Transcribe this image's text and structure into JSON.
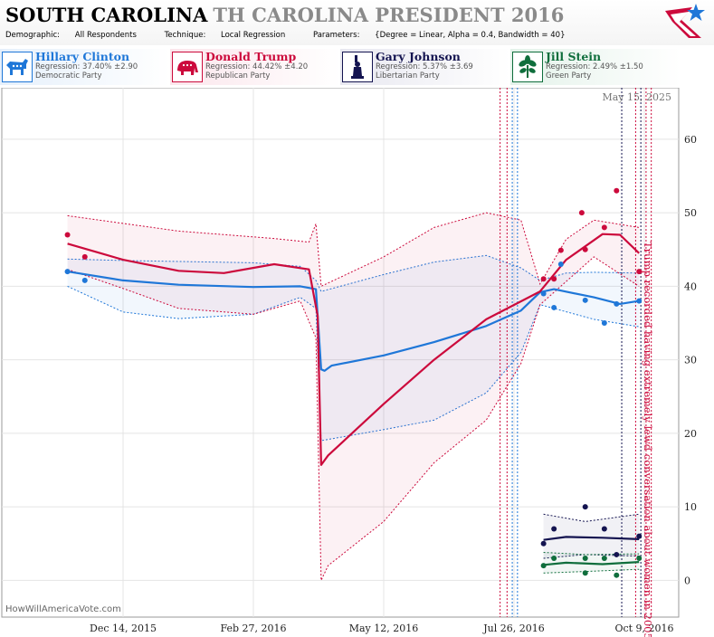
{
  "header": {
    "state": "SOUTH CAROLINA",
    "race": "TH CAROLINA PRESIDENT 2016",
    "demographic_label": "Demographic:",
    "demographic_value": "All Respondents",
    "technique_label": "Technique:",
    "technique_value": "Local Regression",
    "parameters_label": "Parameters:",
    "parameters_value": "{Degree = Linear, Alpha = 0.4, Bandwidth = 40}"
  },
  "candidates": [
    {
      "name": "Hillary Clinton",
      "regression": "Regression: 37.40% ±2.90",
      "party": "Democratic Party",
      "color": "#1f77d8",
      "icon": "donkey-icon"
    },
    {
      "name": "Donald Trump",
      "regression": "Regression: 44.42% ±4.20",
      "party": "Republican Party",
      "color": "#cc0a3c",
      "icon": "elephant-icon"
    },
    {
      "name": "Gary Johnson",
      "regression": "Regression: 5.37% ±3.69",
      "party": "Libertarian Party",
      "color": "#141450",
      "icon": "liberty-statue-icon"
    },
    {
      "name": "Jill Stein",
      "regression": "Regression: 2.49% ±1.50",
      "party": "Green Party",
      "color": "#0f6e3c",
      "icon": "leaf-icon"
    }
  ],
  "watermark": "HowWillAmericaVote.com",
  "chart_data": {
    "type": "line",
    "date_label": "May 15, 2025",
    "x_ticks": [
      "Dec 14, 2015",
      "Feb 27, 2016",
      "May 12, 2016",
      "Jul 26, 2016",
      "Oct 9, 2016"
    ],
    "y_ticks": [
      0,
      10,
      20,
      30,
      40,
      50,
      60
    ],
    "ylim": [
      -5,
      67
    ],
    "annotation": "Trump recorded having extremely lewd conversation about women in 2005",
    "series": [
      {
        "name": "Hillary Clinton",
        "color": "#1f77d8",
        "line": [
          [
            "2015-11-12",
            42
          ],
          [
            "2015-12-14",
            40.8
          ],
          [
            "2016-01-15",
            40.2
          ],
          [
            "2016-02-27",
            39.9
          ],
          [
            "2016-03-25",
            40
          ],
          [
            "2016-04-03",
            39.6
          ],
          [
            "2016-04-06",
            28.7
          ],
          [
            "2016-04-08",
            28.5
          ],
          [
            "2016-04-12",
            29.2
          ],
          [
            "2016-05-12",
            30.6
          ],
          [
            "2016-06-10",
            32.4
          ],
          [
            "2016-07-10",
            34.6
          ],
          [
            "2016-07-30",
            36.7
          ],
          [
            "2016-08-10",
            39.2
          ],
          [
            "2016-08-18",
            39.6
          ],
          [
            "2016-09-10",
            38.5
          ],
          [
            "2016-09-25",
            37.6
          ],
          [
            "2016-10-06",
            38
          ]
        ],
        "upper": [
          [
            "2015-11-12",
            43.7
          ],
          [
            "2015-12-14",
            43.5
          ],
          [
            "2016-02-27",
            43.2
          ],
          [
            "2016-03-25",
            42.7
          ],
          [
            "2016-04-03",
            40.8
          ],
          [
            "2016-04-06",
            39.3
          ],
          [
            "2016-05-12",
            41.6
          ],
          [
            "2016-06-10",
            43.3
          ],
          [
            "2016-07-10",
            44.2
          ],
          [
            "2016-07-30",
            42.5
          ],
          [
            "2016-08-10",
            40.8
          ],
          [
            "2016-08-25",
            41.8
          ],
          [
            "2016-09-10",
            41.9
          ],
          [
            "2016-10-06",
            41.8
          ]
        ],
        "lower": [
          [
            "2015-11-12",
            40
          ],
          [
            "2015-12-14",
            36.5
          ],
          [
            "2016-01-15",
            35.6
          ],
          [
            "2016-02-27",
            36.2
          ],
          [
            "2016-03-25",
            38.5
          ],
          [
            "2016-04-03",
            37
          ],
          [
            "2016-04-06",
            19
          ],
          [
            "2016-05-12",
            20.5
          ],
          [
            "2016-06-10",
            21.8
          ],
          [
            "2016-07-10",
            25.5
          ],
          [
            "2016-07-30",
            31
          ],
          [
            "2016-08-10",
            37.5
          ],
          [
            "2016-09-10",
            35.5
          ],
          [
            "2016-10-06",
            34.5
          ]
        ],
        "points": [
          [
            "2015-11-12",
            42
          ],
          [
            "2015-11-22",
            40.8
          ],
          [
            "2016-08-12",
            39
          ],
          [
            "2016-08-18",
            37.1
          ],
          [
            "2016-08-22",
            43
          ],
          [
            "2016-09-05",
            38.1
          ],
          [
            "2016-09-16",
            35
          ],
          [
            "2016-09-23",
            37.6
          ],
          [
            "2016-10-06",
            38
          ]
        ]
      },
      {
        "name": "Donald Trump",
        "color": "#cc0a3c",
        "line": [
          [
            "2015-11-12",
            45.8
          ],
          [
            "2015-12-01",
            44.5
          ],
          [
            "2015-12-14",
            43.6
          ],
          [
            "2016-01-15",
            42.1
          ],
          [
            "2016-02-10",
            41.8
          ],
          [
            "2016-03-10",
            43
          ],
          [
            "2016-03-30",
            42.3
          ],
          [
            "2016-04-04",
            36
          ],
          [
            "2016-04-06",
            15.7
          ],
          [
            "2016-04-10",
            17
          ],
          [
            "2016-05-12",
            24
          ],
          [
            "2016-06-10",
            30
          ],
          [
            "2016-07-10",
            35.5
          ],
          [
            "2016-08-10",
            39.3
          ],
          [
            "2016-08-25",
            43.6
          ],
          [
            "2016-09-15",
            47.1
          ],
          [
            "2016-09-25",
            47
          ],
          [
            "2016-10-06",
            44.5
          ]
        ],
        "upper": [
          [
            "2015-11-12",
            49.6
          ],
          [
            "2016-01-15",
            47.5
          ],
          [
            "2016-03-10",
            46.5
          ],
          [
            "2016-03-30",
            46
          ],
          [
            "2016-04-03",
            48.5
          ],
          [
            "2016-04-06",
            40
          ],
          [
            "2016-05-12",
            44
          ],
          [
            "2016-06-10",
            48
          ],
          [
            "2016-07-10",
            50
          ],
          [
            "2016-07-30",
            49
          ],
          [
            "2016-08-10",
            40.3
          ],
          [
            "2016-08-25",
            46.4
          ],
          [
            "2016-09-10",
            49
          ],
          [
            "2016-10-06",
            48
          ]
        ],
        "lower": [
          [
            "2015-11-12",
            42.3
          ],
          [
            "2015-12-14",
            39.7
          ],
          [
            "2016-01-15",
            37
          ],
          [
            "2016-02-27",
            36.2
          ],
          [
            "2016-03-25",
            38
          ],
          [
            "2016-04-03",
            33
          ],
          [
            "2016-04-06",
            0
          ],
          [
            "2016-04-10",
            2
          ],
          [
            "2016-05-12",
            8
          ],
          [
            "2016-06-10",
            16
          ],
          [
            "2016-07-10",
            21.8
          ],
          [
            "2016-07-30",
            29.5
          ],
          [
            "2016-08-10",
            37.5
          ],
          [
            "2016-09-10",
            44
          ],
          [
            "2016-10-06",
            40
          ]
        ],
        "points": [
          [
            "2015-11-12",
            47
          ],
          [
            "2015-11-22",
            44
          ],
          [
            "2016-08-12",
            41
          ],
          [
            "2016-08-18",
            41
          ],
          [
            "2016-08-22",
            44.9
          ],
          [
            "2016-09-03",
            50
          ],
          [
            "2016-09-05",
            45
          ],
          [
            "2016-09-16",
            48
          ],
          [
            "2016-09-23",
            53
          ],
          [
            "2016-10-06",
            42
          ]
        ]
      },
      {
        "name": "Gary Johnson",
        "color": "#141450",
        "line": [
          [
            "2016-08-12",
            5.5
          ],
          [
            "2016-08-25",
            5.9
          ],
          [
            "2016-09-15",
            5.8
          ],
          [
            "2016-10-06",
            5.6
          ]
        ],
        "upper": [
          [
            "2016-08-12",
            9
          ],
          [
            "2016-09-05",
            8
          ],
          [
            "2016-10-06",
            9
          ]
        ],
        "lower": [
          [
            "2016-08-12",
            3
          ],
          [
            "2016-09-05",
            3.5
          ],
          [
            "2016-10-06",
            3.3
          ]
        ],
        "points": [
          [
            "2016-08-12",
            5
          ],
          [
            "2016-08-18",
            7
          ],
          [
            "2016-09-05",
            10
          ],
          [
            "2016-09-16",
            7
          ],
          [
            "2016-09-23",
            3.5
          ],
          [
            "2016-10-06",
            6
          ]
        ]
      },
      {
        "name": "Jill Stein",
        "color": "#0f6e3c",
        "line": [
          [
            "2016-08-12",
            2.1
          ],
          [
            "2016-08-25",
            2.4
          ],
          [
            "2016-09-15",
            2.2
          ],
          [
            "2016-10-06",
            2.5
          ]
        ],
        "upper": [
          [
            "2016-08-12",
            3.8
          ],
          [
            "2016-09-05",
            3.5
          ],
          [
            "2016-10-06",
            3.6
          ]
        ],
        "lower": [
          [
            "2016-08-12",
            1
          ],
          [
            "2016-09-05",
            1.2
          ],
          [
            "2016-10-06",
            1.5
          ]
        ],
        "points": [
          [
            "2016-08-12",
            2
          ],
          [
            "2016-08-18",
            3
          ],
          [
            "2016-09-05",
            3
          ],
          [
            "2016-09-05",
            1
          ],
          [
            "2016-09-16",
            3
          ],
          [
            "2016-09-23",
            0.7
          ],
          [
            "2016-10-06",
            3
          ]
        ]
      }
    ]
  }
}
